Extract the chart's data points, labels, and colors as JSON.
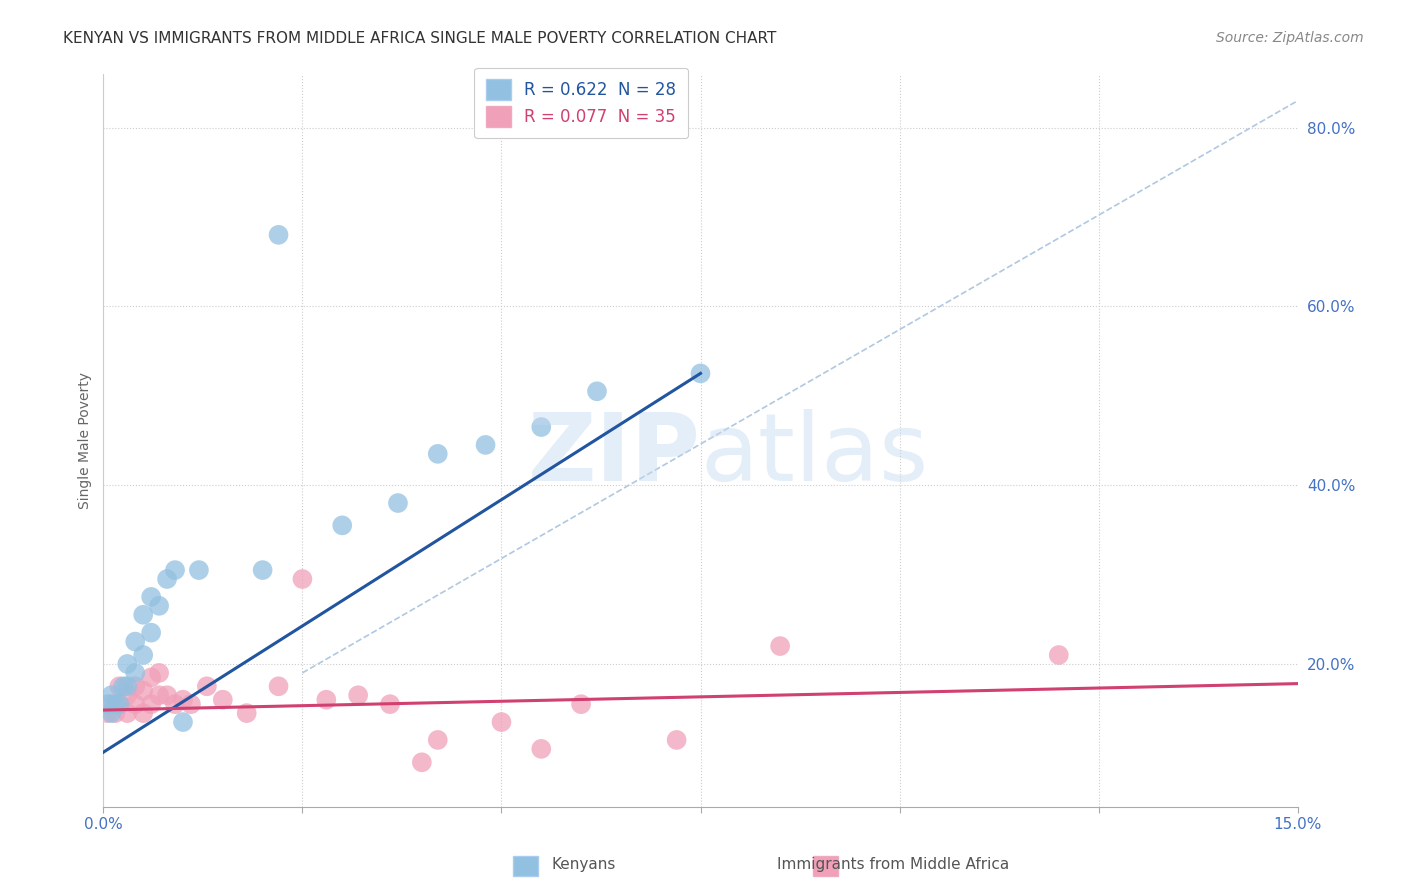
{
  "title": "KENYAN VS IMMIGRANTS FROM MIDDLE AFRICA SINGLE MALE POVERTY CORRELATION CHART",
  "source": "Source: ZipAtlas.com",
  "ylabel": "Single Male Poverty",
  "watermark": "ZIPatlas",
  "legend_label1": "R = 0.622  N = 28",
  "legend_label2": "R = 0.077  N = 35",
  "series1_label": "Kenyans",
  "series2_label": "Immigrants from Middle Africa",
  "series1_color": "#92c0e0",
  "series2_color": "#f0a0b8",
  "series1_line_color": "#2255a0",
  "series2_line_color": "#d04070",
  "diag_line_color": "#b0c8e0",
  "xlim": [
    0.0,
    0.15
  ],
  "ylim": [
    0.04,
    0.86
  ],
  "xtick_positions": [
    0.0,
    0.025,
    0.05,
    0.075,
    0.1,
    0.125,
    0.15
  ],
  "xticklabels": [
    "0.0%",
    "",
    "",
    "",
    "",
    "",
    "15.0%"
  ],
  "ytick_positions": [
    0.2,
    0.4,
    0.6,
    0.8
  ],
  "yticklabels": [
    "20.0%",
    "40.0%",
    "60.0%",
    "80.0%"
  ],
  "title_fontsize": 11,
  "source_fontsize": 10,
  "tick_color": "#4472c4",
  "tick_fontsize": 11,
  "background_color": "#ffffff",
  "grid_color": "#cccccc",
  "blue_x": [
    0.0005,
    0.001,
    0.001,
    0.0015,
    0.002,
    0.0025,
    0.003,
    0.003,
    0.004,
    0.004,
    0.005,
    0.005,
    0.006,
    0.006,
    0.007,
    0.008,
    0.009,
    0.01,
    0.012,
    0.02,
    0.022,
    0.03,
    0.037,
    0.042,
    0.048,
    0.055,
    0.062,
    0.075
  ],
  "blue_y": [
    0.155,
    0.145,
    0.165,
    0.155,
    0.155,
    0.175,
    0.175,
    0.2,
    0.19,
    0.225,
    0.21,
    0.255,
    0.235,
    0.275,
    0.265,
    0.295,
    0.305,
    0.135,
    0.305,
    0.305,
    0.68,
    0.355,
    0.38,
    0.435,
    0.445,
    0.465,
    0.505,
    0.525
  ],
  "pink_x": [
    0.0005,
    0.001,
    0.0015,
    0.002,
    0.002,
    0.003,
    0.003,
    0.004,
    0.004,
    0.005,
    0.005,
    0.006,
    0.006,
    0.007,
    0.007,
    0.008,
    0.009,
    0.01,
    0.011,
    0.013,
    0.015,
    0.018,
    0.022,
    0.025,
    0.028,
    0.032,
    0.036,
    0.04,
    0.042,
    0.05,
    0.055,
    0.06,
    0.072,
    0.085,
    0.12
  ],
  "pink_y": [
    0.145,
    0.155,
    0.145,
    0.155,
    0.175,
    0.145,
    0.165,
    0.155,
    0.175,
    0.145,
    0.17,
    0.155,
    0.185,
    0.165,
    0.19,
    0.165,
    0.155,
    0.16,
    0.155,
    0.175,
    0.16,
    0.145,
    0.175,
    0.295,
    0.16,
    0.165,
    0.155,
    0.09,
    0.115,
    0.135,
    0.105,
    0.155,
    0.115,
    0.22,
    0.21
  ],
  "blue_line_x": [
    -0.002,
    0.075
  ],
  "blue_line_y": [
    0.09,
    0.525
  ],
  "pink_line_x": [
    -0.002,
    0.15
  ],
  "pink_line_y": [
    0.148,
    0.178
  ],
  "diag_line_x": [
    0.025,
    0.15
  ],
  "diag_line_y": [
    0.19,
    0.83
  ]
}
